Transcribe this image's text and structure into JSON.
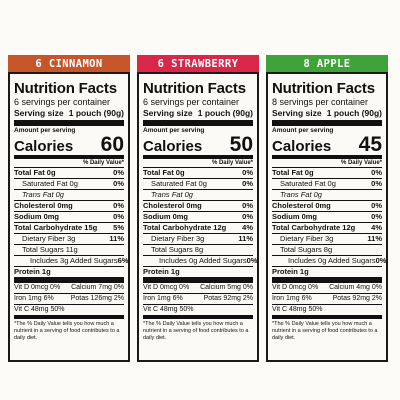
{
  "colors": {
    "cinnamon_band": "#c7552a",
    "strawberry_band": "#d9274a",
    "apple_band": "#3fa33a"
  },
  "labels": [
    {
      "flavor": "6 CINNAMON",
      "title": "Nutrition Facts",
      "servings_per_container": "6 servings per container",
      "serving_size_label": "Serving size",
      "serving_size_value": "1 pouch (90g)",
      "amount_per_serving": "Amount per serving",
      "calories_label": "Calories",
      "calories_value": "60",
      "dv_header": "% Daily Value*",
      "total_fat": "Total Fat 0g",
      "total_fat_pct": "0%",
      "sat_fat": "Saturated Fat 0g",
      "sat_fat_pct": "0%",
      "trans_fat": "Trans Fat 0g",
      "cholesterol": "Cholesterol 0mg",
      "cholesterol_pct": "0%",
      "sodium": "Sodium 0mg",
      "sodium_pct": "0%",
      "carb": "Total Carbohydrate 15g",
      "carb_pct": "5%",
      "fiber": "Dietary Fiber 3g",
      "fiber_pct": "11%",
      "sugars": "Total Sugars 11g",
      "added_sugars": "Includes 3g Added Sugars",
      "added_sugars_pct": "6%",
      "protein": "Protein 1g",
      "vit_d": "Vit D 0mcg 0%",
      "calcium": "Calcium 7mg 0%",
      "iron": "Iron 1mg 6%",
      "potas": "Potas 126mg 2%",
      "vit_c": "Vit C 48mg 50%",
      "footnote": "*The % Daily Value tells you how much a nutrient in a serving of food contributes to a daily diet."
    },
    {
      "flavor": "6 STRAWBERRY",
      "title": "Nutrition Facts",
      "servings_per_container": "6 servings per container",
      "serving_size_label": "Serving size",
      "serving_size_value": "1 pouch (90g)",
      "amount_per_serving": "Amount per serving",
      "calories_label": "Calories",
      "calories_value": "50",
      "dv_header": "% Daily Value*",
      "total_fat": "Total Fat 0g",
      "total_fat_pct": "0%",
      "sat_fat": "Saturated Fat 0g",
      "sat_fat_pct": "0%",
      "trans_fat": "Trans Fat 0g",
      "cholesterol": "Cholesterol 0mg",
      "cholesterol_pct": "0%",
      "sodium": "Sodium 0mg",
      "sodium_pct": "0%",
      "carb": "Total Carbohydrate 12g",
      "carb_pct": "4%",
      "fiber": "Dietary Fiber 3g",
      "fiber_pct": "11%",
      "sugars": "Total Sugars 8g",
      "added_sugars": "Includes 0g Added Sugars",
      "added_sugars_pct": "0%",
      "protein": "Protein 1g",
      "vit_d": "Vit D 0mcg 0%",
      "calcium": "Calcium 5mg 0%",
      "iron": "Iron 1mg 6%",
      "potas": "Potas 92mg 2%",
      "vit_c": "Vit C 48mg 50%",
      "footnote": "*The % Daily Value tells you how much a nutrient in a serving of food contributes to a daily diet."
    },
    {
      "flavor": "8 APPLE",
      "title": "Nutrition Facts",
      "servings_per_container": "8 servings per container",
      "serving_size_label": "Serving size",
      "serving_size_value": "1 pouch (90g)",
      "amount_per_serving": "Amount per serving",
      "calories_label": "Calories",
      "calories_value": "45",
      "dv_header": "% Daily Value*",
      "total_fat": "Total Fat 0g",
      "total_fat_pct": "0%",
      "sat_fat": "Saturated Fat 0g",
      "sat_fat_pct": "0%",
      "trans_fat": "Trans Fat 0g",
      "cholesterol": "Cholesterol 0mg",
      "cholesterol_pct": "0%",
      "sodium": "Sodium 0mg",
      "sodium_pct": "0%",
      "carb": "Total Carbohydrate 12g",
      "carb_pct": "4%",
      "fiber": "Dietary Fiber 3g",
      "fiber_pct": "11%",
      "sugars": "Total Sugars 8g",
      "added_sugars": "Includes 0g Added Sugars",
      "added_sugars_pct": "0%",
      "protein": "Protein 1g",
      "vit_d": "Vit D 0mcg 0%",
      "calcium": "Calcium 4mg 0%",
      "iron": "Iron 1mg 6%",
      "potas": "Potas 92mg 2%",
      "vit_c": "Vit C 48mg 50%",
      "footnote": "*The % Daily Value tells you how much a nutrient in a serving of food contributes to a daily diet."
    }
  ]
}
